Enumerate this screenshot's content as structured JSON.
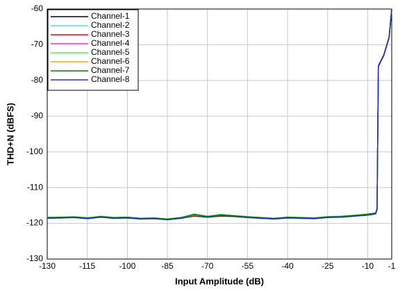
{
  "chart_data": {
    "type": "line",
    "x_label": "Input Amplitude (dB)",
    "y_label": "THD+N (dBFS)",
    "x": [
      -130,
      -125,
      -120,
      -115,
      -110,
      -105,
      -100,
      -95,
      -90,
      -85,
      -80,
      -75,
      -70,
      -65,
      -60,
      -55,
      -50,
      -45,
      -40,
      -35,
      -30,
      -25,
      -20,
      -15,
      -10,
      -8,
      -7,
      -6.5,
      -6,
      -4,
      -2,
      -1
    ],
    "series": [
      {
        "name": "Channel-1",
        "color": "#000000",
        "values": [
          -118.5,
          -118.4,
          -118.3,
          -118.6,
          -118.2,
          -118.5,
          -118.4,
          -118.7,
          -118.6,
          -118.9,
          -118.5,
          -117.8,
          -118.2,
          -117.9,
          -118.0,
          -118.3,
          -118.5,
          -118.7,
          -118.4,
          -118.5,
          -118.6,
          -118.3,
          -118.2,
          -117.9,
          -117.6,
          -117.4,
          -117.2,
          -116.0,
          -76,
          -73,
          -68,
          -60
        ]
      },
      {
        "name": "Channel-2",
        "color": "#40e0f0",
        "values": [
          -118.6,
          -118.4,
          -118.2,
          -118.4,
          -118.3,
          -118.5,
          -118.3,
          -118.7,
          -118.5,
          -118.8,
          -118.4,
          -117.9,
          -118.1,
          -117.8,
          -118.1,
          -118.2,
          -118.6,
          -118.6,
          -118.5,
          -118.4,
          -118.5,
          -118.4,
          -118.1,
          -117.8,
          -117.5,
          -117.3,
          -117.1,
          -115.9,
          -76,
          -73,
          -68,
          -60
        ]
      },
      {
        "name": "Channel-3",
        "color": "#ff0000",
        "values": [
          -118.4,
          -118.5,
          -118.3,
          -118.5,
          -118.2,
          -118.6,
          -118.4,
          -118.6,
          -118.7,
          -118.9,
          -118.6,
          -117.7,
          -118.3,
          -117.9,
          -117.9,
          -118.4,
          -118.5,
          -118.8,
          -118.4,
          -118.6,
          -118.6,
          -118.2,
          -118.3,
          -117.9,
          -117.7,
          -117.4,
          -117.3,
          -116.1,
          -75.8,
          -72.8,
          -67.8,
          -60
        ]
      },
      {
        "name": "Channel-4",
        "color": "#ff20ff",
        "values": [
          -118.5,
          -118.3,
          -118.4,
          -118.6,
          -118.1,
          -118.5,
          -118.5,
          -118.7,
          -118.6,
          -118.8,
          -118.5,
          -117.8,
          -118.2,
          -118.0,
          -118.0,
          -118.3,
          -118.4,
          -118.7,
          -118.3,
          -118.5,
          -118.7,
          -118.3,
          -118.2,
          -118.0,
          -117.6,
          -117.5,
          -117.2,
          -116.0,
          -76.1,
          -73.1,
          -68.1,
          -60
        ]
      },
      {
        "name": "Channel-5",
        "color": "#40ff40",
        "values": [
          -118.3,
          -118.4,
          -118.2,
          -118.5,
          -118.0,
          -118.4,
          -118.3,
          -118.6,
          -118.5,
          -118.8,
          -118.4,
          -117.4,
          -118.0,
          -117.5,
          -117.8,
          -118.1,
          -118.4,
          -118.6,
          -118.3,
          -118.4,
          -118.5,
          -118.1,
          -118.0,
          -117.7,
          -117.5,
          -117.3,
          -117.1,
          -115.9,
          -76,
          -73,
          -68,
          -60
        ]
      },
      {
        "name": "Channel-6",
        "color": "#ffa500",
        "values": [
          -118.5,
          -118.5,
          -118.3,
          -118.6,
          -118.3,
          -118.5,
          -118.4,
          -118.8,
          -118.6,
          -118.9,
          -118.5,
          -117.9,
          -118.2,
          -118.0,
          -118.1,
          -118.3,
          -118.5,
          -118.7,
          -118.5,
          -118.5,
          -118.6,
          -118.3,
          -118.2,
          -117.9,
          -117.6,
          -117.4,
          -117.2,
          -116.0,
          -76,
          -73,
          -68,
          -60
        ]
      },
      {
        "name": "Channel-7",
        "color": "#008000",
        "values": [
          -118.4,
          -118.3,
          -118.2,
          -118.5,
          -118.1,
          -118.4,
          -118.3,
          -118.6,
          -118.5,
          -118.8,
          -118.4,
          -117.5,
          -118.1,
          -117.6,
          -117.9,
          -118.2,
          -118.4,
          -118.6,
          -118.3,
          -118.4,
          -118.5,
          -118.2,
          -118.1,
          -117.8,
          -117.4,
          -117.2,
          -117.1,
          -115.8,
          -76,
          -73,
          -68,
          -60
        ]
      },
      {
        "name": "Channel-8",
        "color": "#2030c0",
        "values": [
          -118.6,
          -118.5,
          -118.4,
          -118.7,
          -118.3,
          -118.6,
          -118.5,
          -118.8,
          -118.7,
          -119.0,
          -118.6,
          -118.0,
          -118.3,
          -118.0,
          -118.1,
          -118.4,
          -118.6,
          -118.8,
          -118.5,
          -118.6,
          -118.7,
          -118.4,
          -118.3,
          -118.0,
          -117.7,
          -117.5,
          -117.3,
          -116.1,
          -76,
          -73,
          -68,
          -60
        ]
      }
    ],
    "xlim": [
      -130,
      -1
    ],
    "xticks": [
      -130,
      -115,
      -100,
      -85,
      -70,
      -55,
      -40,
      -25,
      -10,
      -1
    ],
    "ylim": [
      -130,
      -60
    ],
    "yticks": [
      -130,
      -120,
      -110,
      -100,
      -90,
      -80,
      -70,
      -60
    ],
    "grid": true,
    "legend": "upper left"
  }
}
